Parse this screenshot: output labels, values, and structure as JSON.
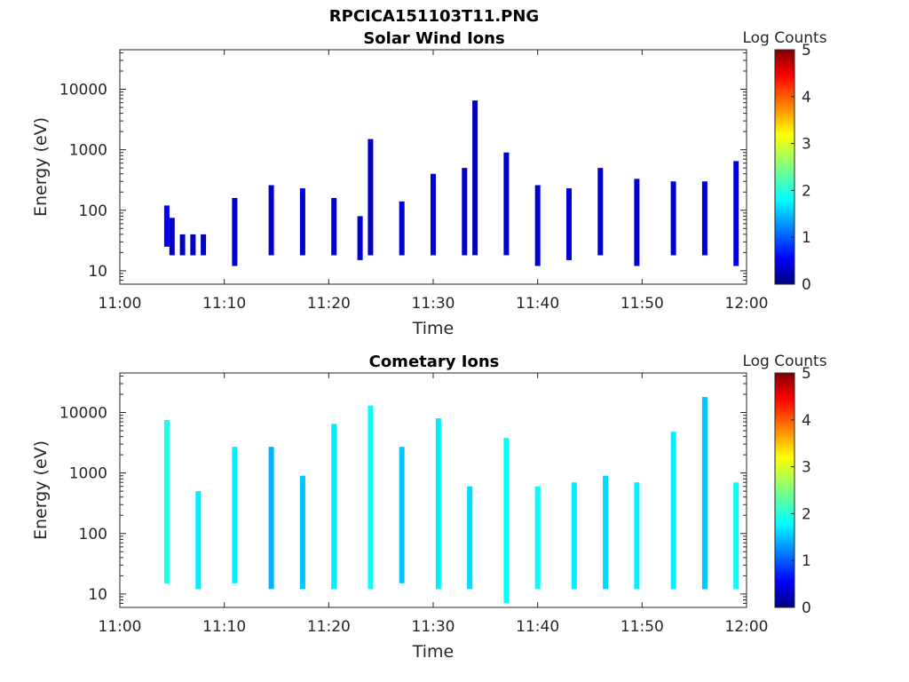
{
  "figure_title": "RPCICA151103T11.PNG",
  "chart_data": [
    {
      "type": "heatmap",
      "title": "Solar Wind Ions",
      "xlabel": "Time",
      "ylabel": "Energy (eV)",
      "x_range": [
        "11:00",
        "12:00"
      ],
      "xticks": [
        "11:00",
        "11:10",
        "11:20",
        "11:30",
        "11:40",
        "11:50",
        "12:00"
      ],
      "y_scale": "log",
      "ylim": [
        6,
        45000
      ],
      "yticks": [
        10,
        100,
        1000,
        10000
      ],
      "ytick_labels": [
        "10",
        "100",
        "1000",
        "10000"
      ],
      "colorbar": {
        "label": "Log Counts",
        "range": [
          0,
          5
        ],
        "ticks": [
          "0",
          "1",
          "2",
          "3",
          "4",
          "5"
        ],
        "colormap": "jet"
      },
      "data": [
        {
          "t": "11:04:30",
          "e_min": 25,
          "e_max": 120,
          "level": 0.6
        },
        {
          "t": "11:05:00",
          "e_min": 18,
          "e_max": 75,
          "level": 0.3
        },
        {
          "t": "11:06:00",
          "e_min": 18,
          "e_max": 40,
          "level": 0.3
        },
        {
          "t": "11:07:00",
          "e_min": 18,
          "e_max": 40,
          "level": 0.3
        },
        {
          "t": "11:08:00",
          "e_min": 18,
          "e_max": 40,
          "level": 0.3
        },
        {
          "t": "11:11:00",
          "e_min": 12,
          "e_max": 160,
          "level": 0.4
        },
        {
          "t": "11:14:30",
          "e_min": 18,
          "e_max": 260,
          "level": 0.4
        },
        {
          "t": "11:17:30",
          "e_min": 18,
          "e_max": 230,
          "level": 0.4
        },
        {
          "t": "11:20:30",
          "e_min": 18,
          "e_max": 160,
          "level": 0.4
        },
        {
          "t": "11:23:00",
          "e_min": 15,
          "e_max": 80,
          "level": 0.4
        },
        {
          "t": "11:24:00",
          "e_min": 18,
          "e_max": 1500,
          "level": 0.3
        },
        {
          "t": "11:27:00",
          "e_min": 18,
          "e_max": 140,
          "level": 0.4
        },
        {
          "t": "11:30:00",
          "e_min": 18,
          "e_max": 400,
          "level": 0.4
        },
        {
          "t": "11:33:00",
          "e_min": 18,
          "e_max": 500,
          "level": 0.4
        },
        {
          "t": "11:34:00",
          "e_min": 18,
          "e_max": 6500,
          "level": 0.3
        },
        {
          "t": "11:37:00",
          "e_min": 18,
          "e_max": 900,
          "level": 0.4
        },
        {
          "t": "11:40:00",
          "e_min": 12,
          "e_max": 260,
          "level": 0.4
        },
        {
          "t": "11:43:00",
          "e_min": 15,
          "e_max": 230,
          "level": 0.4
        },
        {
          "t": "11:46:00",
          "e_min": 18,
          "e_max": 500,
          "level": 0.4
        },
        {
          "t": "11:49:30",
          "e_min": 12,
          "e_max": 330,
          "level": 0.4
        },
        {
          "t": "11:53:00",
          "e_min": 18,
          "e_max": 300,
          "level": 0.4
        },
        {
          "t": "11:56:00",
          "e_min": 18,
          "e_max": 300,
          "level": 0.4
        },
        {
          "t": "11:59:00",
          "e_min": 12,
          "e_max": 650,
          "level": 0.5
        }
      ]
    },
    {
      "type": "heatmap",
      "title": "Cometary Ions",
      "xlabel": "Time",
      "ylabel": "Energy (eV)",
      "x_range": [
        "11:00",
        "12:00"
      ],
      "xticks": [
        "11:00",
        "11:10",
        "11:20",
        "11:30",
        "11:40",
        "11:50",
        "12:00"
      ],
      "y_scale": "log",
      "ylim": [
        6,
        45000
      ],
      "yticks": [
        10,
        100,
        1000,
        10000
      ],
      "ytick_labels": [
        "10",
        "100",
        "1000",
        "10000"
      ],
      "colorbar": {
        "label": "Log Counts",
        "range": [
          0,
          5
        ],
        "ticks": [
          "0",
          "1",
          "2",
          "3",
          "4",
          "5"
        ],
        "colormap": "jet"
      },
      "data": [
        {
          "t": "11:04:30",
          "e_min": 15,
          "e_max": 7500,
          "level": 2.0
        },
        {
          "t": "11:07:30",
          "e_min": 12,
          "e_max": 500,
          "level": 1.8
        },
        {
          "t": "11:11:00",
          "e_min": 15,
          "e_max": 2700,
          "level": 1.8
        },
        {
          "t": "11:14:30",
          "e_min": 12,
          "e_max": 2700,
          "level": 1.5
        },
        {
          "t": "11:17:30",
          "e_min": 12,
          "e_max": 900,
          "level": 1.6
        },
        {
          "t": "11:20:30",
          "e_min": 12,
          "e_max": 6500,
          "level": 1.8
        },
        {
          "t": "11:24:00",
          "e_min": 12,
          "e_max": 13000,
          "level": 1.9
        },
        {
          "t": "11:27:00",
          "e_min": 15,
          "e_max": 2700,
          "level": 1.6
        },
        {
          "t": "11:30:30",
          "e_min": 12,
          "e_max": 8000,
          "level": 1.8
        },
        {
          "t": "11:33:30",
          "e_min": 12,
          "e_max": 600,
          "level": 1.7
        },
        {
          "t": "11:37:00",
          "e_min": 7,
          "e_max": 3800,
          "level": 1.9
        },
        {
          "t": "11:40:00",
          "e_min": 12,
          "e_max": 600,
          "level": 1.9
        },
        {
          "t": "11:43:30",
          "e_min": 12,
          "e_max": 700,
          "level": 1.8
        },
        {
          "t": "11:46:30",
          "e_min": 12,
          "e_max": 900,
          "level": 1.7
        },
        {
          "t": "11:49:30",
          "e_min": 12,
          "e_max": 700,
          "level": 1.8
        },
        {
          "t": "11:53:00",
          "e_min": 12,
          "e_max": 4800,
          "level": 1.8
        },
        {
          "t": "11:56:00",
          "e_min": 12,
          "e_max": 18000,
          "level": 1.6
        },
        {
          "t": "11:59:00",
          "e_min": 12,
          "e_max": 700,
          "level": 1.9
        }
      ]
    }
  ]
}
